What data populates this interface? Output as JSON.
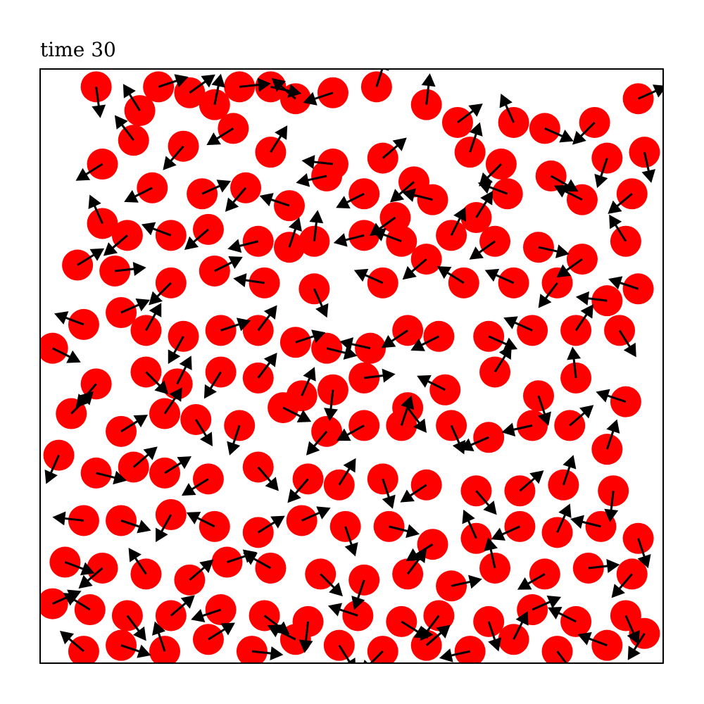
{
  "title": "time 30",
  "chart_data": {
    "type": "scatter",
    "title": "time 30",
    "xlabel": "",
    "ylabel": "",
    "xlim": [
      0,
      1
    ],
    "ylim": [
      0,
      1
    ],
    "axis_ticks": false,
    "grid": false,
    "marker_color": "#ff0000",
    "arrow_color": "#000000",
    "series": [
      {
        "values": [
          [
            0.09,
            0.97,
            0.12,
            -0.9
          ],
          [
            0.16,
            0.93,
            -0.5,
            0.8
          ],
          [
            0.19,
            0.97,
            0.9,
            0.3
          ],
          [
            0.24,
            0.96,
            0.7,
            0.5
          ],
          [
            0.28,
            0.94,
            0.2,
            0.98
          ],
          [
            0.32,
            0.97,
            0.95,
            0.1
          ],
          [
            0.37,
            0.97,
            0.9,
            -0.2
          ],
          [
            0.41,
            0.95,
            -0.7,
            0.6
          ],
          [
            0.47,
            0.96,
            -0.9,
            -0.3
          ],
          [
            0.54,
            0.97,
            0.3,
            0.95
          ],
          [
            0.62,
            0.94,
            0.1,
            0.9
          ],
          [
            0.67,
            0.91,
            0.8,
            0.6
          ],
          [
            0.76,
            0.91,
            -0.4,
            0.9
          ],
          [
            0.81,
            0.9,
            0.9,
            -0.4
          ],
          [
            0.89,
            0.91,
            -0.7,
            -0.7
          ],
          [
            0.96,
            0.95,
            0.9,
            0.4
          ],
          [
            0.15,
            0.88,
            -0.6,
            0.8
          ],
          [
            0.23,
            0.87,
            -0.6,
            -0.7
          ],
          [
            0.31,
            0.9,
            -0.8,
            -0.5
          ],
          [
            0.37,
            0.86,
            0.5,
            0.8
          ],
          [
            0.47,
            0.84,
            -0.9,
            0.1
          ],
          [
            0.55,
            0.85,
            0.7,
            0.6
          ],
          [
            0.6,
            0.81,
            -0.7,
            -0.6
          ],
          [
            0.69,
            0.86,
            0.3,
            0.9
          ],
          [
            0.74,
            0.84,
            -0.6,
            -0.6
          ],
          [
            0.82,
            0.82,
            0.7,
            -0.4
          ],
          [
            0.91,
            0.85,
            -0.3,
            -0.9
          ],
          [
            0.97,
            0.86,
            0.2,
            -0.9
          ],
          [
            0.1,
            0.84,
            -0.8,
            -0.5
          ],
          [
            0.18,
            0.8,
            -0.8,
            -0.4
          ],
          [
            0.26,
            0.79,
            0.9,
            0.4
          ],
          [
            0.33,
            0.8,
            -0.6,
            -0.7
          ],
          [
            0.4,
            0.77,
            -0.9,
            0.3
          ],
          [
            0.46,
            0.82,
            -0.9,
            -0.2
          ],
          [
            0.52,
            0.79,
            -0.8,
            -0.4
          ],
          [
            0.57,
            0.75,
            -0.7,
            -0.5
          ],
          [
            0.63,
            0.78,
            -0.8,
            0.2
          ],
          [
            0.7,
            0.75,
            0.5,
            0.8
          ],
          [
            0.75,
            0.79,
            -0.8,
            0.3
          ],
          [
            0.87,
            0.78,
            -0.8,
            0.4
          ],
          [
            0.95,
            0.79,
            -0.6,
            -0.5
          ],
          [
            0.1,
            0.74,
            -0.4,
            0.9
          ],
          [
            0.14,
            0.72,
            -0.7,
            -0.6
          ],
          [
            0.21,
            0.72,
            -0.8,
            0.3
          ],
          [
            0.27,
            0.73,
            -0.7,
            -0.6
          ],
          [
            0.35,
            0.71,
            -0.8,
            -0.2
          ],
          [
            0.4,
            0.7,
            0.3,
            0.9
          ],
          [
            0.44,
            0.71,
            0.1,
            0.9
          ],
          [
            0.52,
            0.72,
            -0.8,
            -0.2
          ],
          [
            0.58,
            0.71,
            -0.8,
            0.3
          ],
          [
            0.66,
            0.72,
            0.4,
            0.8
          ],
          [
            0.73,
            0.71,
            -0.7,
            -0.5
          ],
          [
            0.8,
            0.7,
            0.9,
            -0.2
          ],
          [
            0.87,
            0.68,
            -0.7,
            -0.5
          ],
          [
            0.94,
            0.71,
            -0.5,
            0.8
          ],
          [
            0.06,
            0.67,
            0.8,
            0.5
          ],
          [
            0.12,
            0.66,
            0.9,
            0.1
          ],
          [
            0.21,
            0.64,
            -0.6,
            -0.6
          ],
          [
            0.28,
            0.66,
            0.8,
            0.4
          ],
          [
            0.36,
            0.64,
            -0.7,
            0.1
          ],
          [
            0.44,
            0.63,
            0.4,
            -0.9
          ],
          [
            0.55,
            0.64,
            -0.9,
            0.4
          ],
          [
            0.62,
            0.68,
            -0.7,
            -0.6
          ],
          [
            0.68,
            0.64,
            -0.8,
            0.5
          ],
          [
            0.76,
            0.64,
            -0.9,
            0.4
          ],
          [
            0.83,
            0.64,
            -0.6,
            -0.8
          ],
          [
            0.91,
            0.61,
            -0.8,
            0.1
          ],
          [
            0.96,
            0.63,
            -0.9,
            0.3
          ],
          [
            0.07,
            0.57,
            -0.8,
            0.3
          ],
          [
            0.13,
            0.59,
            0.9,
            0.4
          ],
          [
            0.17,
            0.56,
            0.5,
            0.9
          ],
          [
            0.23,
            0.55,
            -0.5,
            -0.9
          ],
          [
            0.29,
            0.56,
            0.9,
            0.3
          ],
          [
            0.35,
            0.56,
            0.6,
            0.8
          ],
          [
            0.41,
            0.54,
            0.9,
            0.3
          ],
          [
            0.46,
            0.53,
            0.8,
            -0.2
          ],
          [
            0.53,
            0.53,
            -0.9,
            0.2
          ],
          [
            0.59,
            0.56,
            -0.6,
            -0.4
          ],
          [
            0.64,
            0.55,
            -0.8,
            -0.4
          ],
          [
            0.72,
            0.55,
            0.9,
            -0.4
          ],
          [
            0.79,
            0.56,
            -0.9,
            0.4
          ],
          [
            0.86,
            0.56,
            0.6,
            0.9
          ],
          [
            0.93,
            0.56,
            0.5,
            -0.8
          ],
          [
            0.02,
            0.53,
            0.8,
            -0.4
          ],
          [
            0.09,
            0.47,
            -0.6,
            -0.7
          ],
          [
            0.17,
            0.49,
            0.7,
            -0.7
          ],
          [
            0.22,
            0.47,
            0.4,
            0.8
          ],
          [
            0.29,
            0.49,
            -0.5,
            -0.8
          ],
          [
            0.35,
            0.48,
            0.6,
            0.8
          ],
          [
            0.42,
            0.45,
            0.4,
            0.9
          ],
          [
            0.47,
            0.46,
            -0.1,
            -0.9
          ],
          [
            0.52,
            0.48,
            0.8,
            0.1
          ],
          [
            0.59,
            0.43,
            0.6,
            -0.8
          ],
          [
            0.65,
            0.46,
            -0.8,
            0.4
          ],
          [
            0.73,
            0.49,
            0.5,
            0.8
          ],
          [
            0.8,
            0.45,
            0.3,
            -0.9
          ],
          [
            0.86,
            0.48,
            -0.1,
            0.9
          ],
          [
            0.94,
            0.44,
            -0.9,
            0.3
          ],
          [
            0.05,
            0.42,
            0.7,
            0.7
          ],
          [
            0.13,
            0.39,
            0.8,
            0.5
          ],
          [
            0.2,
            0.42,
            0.6,
            0.9
          ],
          [
            0.25,
            0.41,
            0.5,
            -0.8
          ],
          [
            0.32,
            0.4,
            -0.3,
            -0.9
          ],
          [
            0.39,
            0.43,
            0.8,
            -0.4
          ],
          [
            0.46,
            0.39,
            -0.6,
            -0.7
          ],
          [
            0.52,
            0.4,
            -0.9,
            -0.5
          ],
          [
            0.58,
            0.4,
            0.3,
            0.9
          ],
          [
            0.66,
            0.4,
            0.4,
            -0.9
          ],
          [
            0.72,
            0.38,
            -0.7,
            -0.3
          ],
          [
            0.79,
            0.4,
            -0.9,
            -0.2
          ],
          [
            0.85,
            0.4,
            0.7,
            0.6
          ],
          [
            0.91,
            0.36,
            0.3,
            0.9
          ],
          [
            0.03,
            0.35,
            -0.4,
            -0.9
          ],
          [
            0.09,
            0.32,
            0.8,
            -0.2
          ],
          [
            0.15,
            0.33,
            0.7,
            0.6
          ],
          [
            0.2,
            0.32,
            0.8,
            0.5
          ],
          [
            0.27,
            0.31,
            -0.8,
            -0.5
          ],
          [
            0.35,
            0.33,
            0.6,
            -0.7
          ],
          [
            0.43,
            0.31,
            -0.6,
            -0.7
          ],
          [
            0.48,
            0.3,
            0.5,
            0.8
          ],
          [
            0.55,
            0.31,
            0.3,
            -0.9
          ],
          [
            0.62,
            0.3,
            -0.6,
            -0.4
          ],
          [
            0.7,
            0.29,
            0.6,
            -0.7
          ],
          [
            0.77,
            0.29,
            0.7,
            0.6
          ],
          [
            0.84,
            0.3,
            0.3,
            0.9
          ],
          [
            0.92,
            0.29,
            -0.1,
            -0.9
          ],
          [
            0.07,
            0.24,
            -0.9,
            0.1
          ],
          [
            0.13,
            0.24,
            0.9,
            -0.3
          ],
          [
            0.21,
            0.25,
            -0.5,
            -0.9
          ],
          [
            0.28,
            0.23,
            -0.8,
            0.4
          ],
          [
            0.35,
            0.22,
            0.8,
            0.5
          ],
          [
            0.42,
            0.24,
            0.9,
            0.4
          ],
          [
            0.49,
            0.23,
            0.3,
            -0.9
          ],
          [
            0.56,
            0.23,
            0.8,
            -0.2
          ],
          [
            0.63,
            0.2,
            -0.8,
            -0.5
          ],
          [
            0.7,
            0.21,
            -0.4,
            0.9
          ],
          [
            0.77,
            0.23,
            -0.9,
            -0.4
          ],
          [
            0.83,
            0.22,
            0.4,
            0.9
          ],
          [
            0.9,
            0.23,
            -0.8,
            0.2
          ],
          [
            0.96,
            0.21,
            0.3,
            -0.9
          ],
          [
            0.04,
            0.17,
            0.8,
            -0.3
          ],
          [
            0.1,
            0.16,
            -0.7,
            -0.6
          ],
          [
            0.17,
            0.15,
            -0.6,
            0.9
          ],
          [
            0.24,
            0.14,
            0.7,
            0.6
          ],
          [
            0.3,
            0.17,
            0.9,
            0.3
          ],
          [
            0.37,
            0.16,
            -0.9,
            0.5
          ],
          [
            0.45,
            0.15,
            0.7,
            -0.7
          ],
          [
            0.52,
            0.14,
            -0.3,
            -0.9
          ],
          [
            0.59,
            0.15,
            0.6,
            0.8
          ],
          [
            0.66,
            0.13,
            0.9,
            0.2
          ],
          [
            0.73,
            0.16,
            -0.2,
            0.9
          ],
          [
            0.81,
            0.15,
            -0.7,
            -0.4
          ],
          [
            0.88,
            0.16,
            0.9,
            0.1
          ],
          [
            0.95,
            0.15,
            -0.6,
            -0.7
          ],
          [
            0.02,
            0.1,
            0.9,
            0.4
          ],
          [
            0.08,
            0.09,
            -0.8,
            0.5
          ],
          [
            0.14,
            0.08,
            0.6,
            -0.8
          ],
          [
            0.21,
            0.08,
            0.7,
            0.6
          ],
          [
            0.29,
            0.09,
            -0.9,
            -0.3
          ],
          [
            0.36,
            0.08,
            0.8,
            -0.6
          ],
          [
            0.43,
            0.07,
            -0.1,
            -0.9
          ],
          [
            0.51,
            0.08,
            -0.9,
            0.3
          ],
          [
            0.58,
            0.07,
            0.8,
            -0.5
          ],
          [
            0.64,
            0.08,
            -0.6,
            -0.8
          ],
          [
            0.72,
            0.07,
            0.3,
            -0.9
          ],
          [
            0.79,
            0.09,
            0.9,
            0.4
          ],
          [
            0.86,
            0.07,
            -0.8,
            0.4
          ],
          [
            0.94,
            0.08,
            0.4,
            -0.9
          ],
          [
            0.07,
            0.02,
            -0.7,
            0.6
          ],
          [
            0.13,
            0.03,
            0.9,
            -0.3
          ],
          [
            0.2,
            0.02,
            -0.3,
            0.9
          ],
          [
            0.27,
            0.04,
            0.8,
            0.5
          ],
          [
            0.34,
            0.02,
            0.9,
            -0.1
          ],
          [
            0.41,
            0.04,
            -0.8,
            0.4
          ],
          [
            0.48,
            0.03,
            0.5,
            -0.8
          ],
          [
            0.55,
            0.02,
            -0.6,
            -0.6
          ],
          [
            0.62,
            0.03,
            0.7,
            0.6
          ],
          [
            0.69,
            0.02,
            -0.9,
            -0.2
          ],
          [
            0.76,
            0.04,
            0.4,
            0.8
          ],
          [
            0.83,
            0.02,
            0.6,
            -0.8
          ],
          [
            0.91,
            0.03,
            -0.8,
            0.3
          ],
          [
            0.97,
            0.05,
            -0.5,
            -0.8
          ]
        ]
      }
    ]
  }
}
